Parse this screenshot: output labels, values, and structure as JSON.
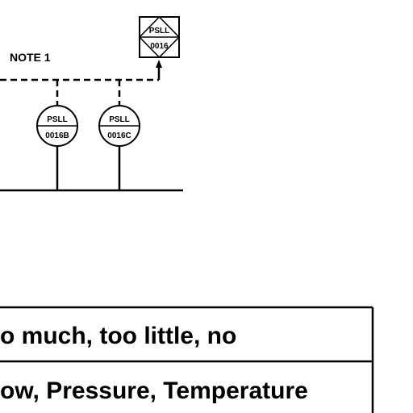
{
  "diagram": {
    "note_label": "NOTE 1",
    "instruments": [
      {
        "id": "main",
        "tag_top": "PSLL",
        "tag_bottom": "0016"
      },
      {
        "id": "b",
        "tag_top": "PSLL",
        "tag_bottom": "0016B"
      },
      {
        "id": "c",
        "tag_top": "PSLL",
        "tag_bottom": "0016C"
      }
    ]
  },
  "table": {
    "rows": [
      "o much, too little, no",
      "ow, Pressure, Temperature"
    ]
  }
}
